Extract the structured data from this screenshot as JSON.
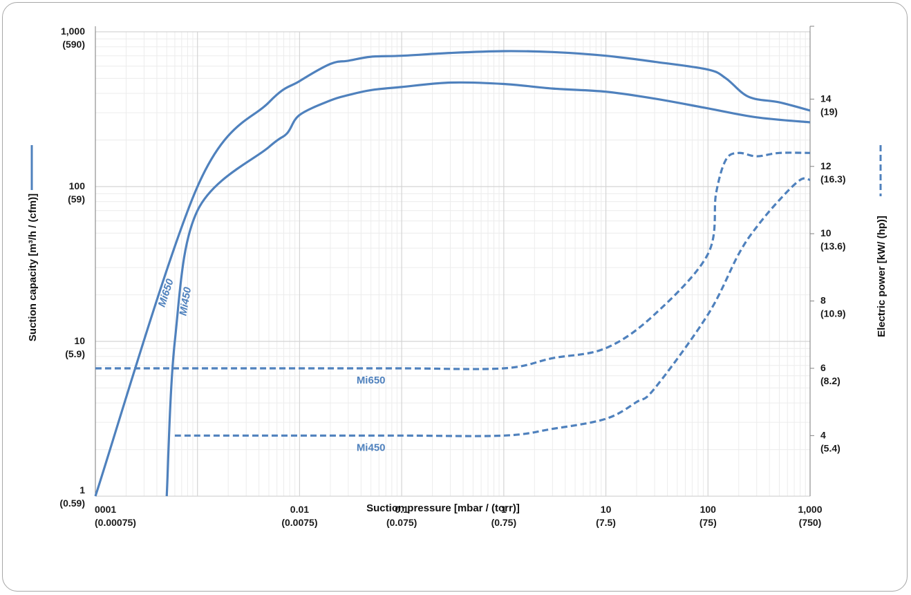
{
  "chart_data": {
    "type": "line",
    "xlabel": "Suction pressure [mbar / (torr)]",
    "ylabel": "Suction capacity [m³/h / (cfm)]",
    "y2label": "Electric power [kW/ (hp)]",
    "x_scale": "log",
    "y_scale": "log",
    "xlim": [
      0.0001,
      1000
    ],
    "ylim": [
      1,
      1000
    ],
    "y2lim": [
      2.2,
      16
    ],
    "grid": true,
    "accent_color": "#4f81bd",
    "x_ticks": [
      {
        "value": 0.0001,
        "label": "0001",
        "sub": "(0.00075)"
      },
      {
        "value": 0.01,
        "label": "0.01",
        "sub": "(0.0075)"
      },
      {
        "value": 0.1,
        "label": "0.1",
        "sub": "(0.075)"
      },
      {
        "value": 1,
        "label": "1",
        "sub": "(0.75)"
      },
      {
        "value": 10,
        "label": "10",
        "sub": "(7.5)"
      },
      {
        "value": 100,
        "label": "100",
        "sub": "(75)"
      },
      {
        "value": 1000,
        "label": "1,000",
        "sub": "(750)"
      }
    ],
    "y_ticks": [
      {
        "value": 1,
        "label": "1",
        "sub": "(0.59)"
      },
      {
        "value": 10,
        "label": "10",
        "sub": "(5.9)"
      },
      {
        "value": 100,
        "label": "100",
        "sub": "(59)"
      },
      {
        "value": 1000,
        "label": "1,000",
        "sub": "(590)"
      }
    ],
    "y2_ticks": [
      {
        "value": 4,
        "label": "4",
        "sub": "(5.4)"
      },
      {
        "value": 6,
        "label": "6",
        "sub": "(8.2)"
      },
      {
        "value": 8,
        "label": "8",
        "sub": "(10.9)"
      },
      {
        "value": 10,
        "label": "10",
        "sub": "(13.6)"
      },
      {
        "value": 12,
        "label": "12",
        "sub": "(16.3)"
      },
      {
        "value": 14,
        "label": "14",
        "sub": "(19)"
      }
    ],
    "series": [
      {
        "name": "Mi650",
        "axis": "left",
        "style": "solid",
        "x": [
          0.0001,
          0.001,
          0.005,
          0.01,
          0.02,
          0.03,
          0.05,
          0.1,
          0.3,
          1,
          3,
          10,
          30,
          100,
          150,
          250,
          500,
          1000
        ],
        "y": [
          1,
          100,
          350,
          480,
          620,
          650,
          690,
          700,
          730,
          750,
          740,
          700,
          640,
          570,
          500,
          380,
          350,
          310
        ]
      },
      {
        "name": "Mi450",
        "axis": "left",
        "style": "solid",
        "x": [
          0.0005,
          0.0006,
          0.001,
          0.005,
          0.0075,
          0.01,
          0.02,
          0.03,
          0.05,
          0.1,
          0.3,
          1,
          3,
          10,
          30,
          100,
          300,
          1000
        ],
        "y": [
          1,
          10,
          70,
          180,
          220,
          290,
          360,
          390,
          420,
          440,
          470,
          460,
          430,
          410,
          370,
          320,
          280,
          260
        ]
      },
      {
        "name": "Mi650",
        "axis": "right",
        "style": "dashed",
        "x": [
          0.0001,
          0.01,
          0.1,
          1,
          3,
          10,
          30,
          100,
          120,
          150,
          200,
          300,
          500,
          1000
        ],
        "y": [
          6,
          6,
          6,
          6,
          6.3,
          6.6,
          7.6,
          9.4,
          11.2,
          12.2,
          12.4,
          12.3,
          12.4,
          12.4
        ]
      },
      {
        "name": "Mi450",
        "axis": "right",
        "style": "dashed",
        "x": [
          0.0006,
          0.01,
          0.1,
          1,
          3,
          10,
          20,
          30,
          100,
          200,
          300,
          500,
          800,
          1000
        ],
        "y": [
          4,
          4,
          4,
          4,
          4.2,
          4.5,
          5,
          5.4,
          7.6,
          9.4,
          10.2,
          11,
          11.6,
          11.6
        ]
      }
    ],
    "annotations": [
      {
        "text": "Mi650",
        "series": 0
      },
      {
        "text": "Mi450",
        "series": 1
      },
      {
        "text": "Mi650",
        "series": 2
      },
      {
        "text": "Mi450",
        "series": 3
      }
    ]
  }
}
